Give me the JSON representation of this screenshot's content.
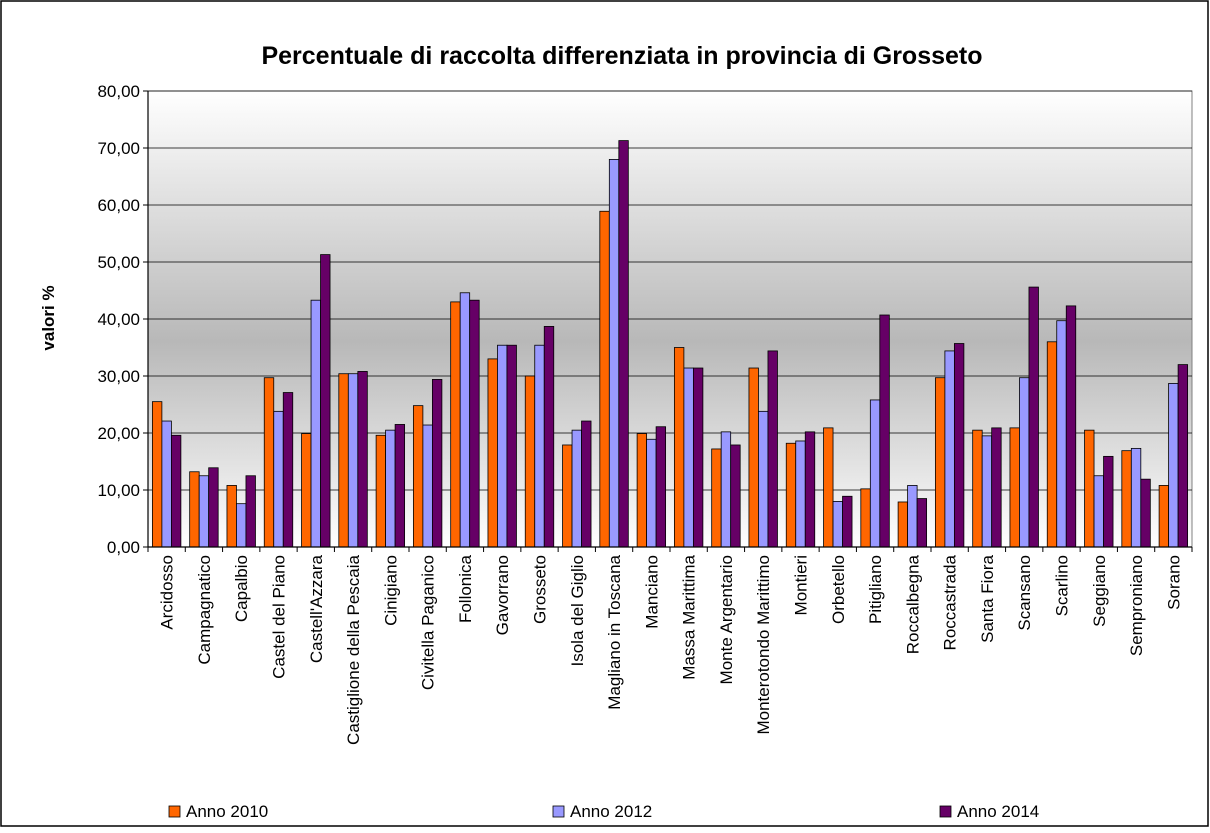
{
  "chart_data": {
    "type": "bar",
    "title": "Percentuale di raccolta differenziata in provincia di Grosseto",
    "xlabel": "",
    "ylabel": "valori %",
    "ylim": [
      0,
      80
    ],
    "yticks": [
      "0,00",
      "10,00",
      "20,00",
      "30,00",
      "40,00",
      "50,00",
      "60,00",
      "70,00",
      "80,00"
    ],
    "grid": true,
    "legend_position": "bottom",
    "categories": [
      "Arcidosso",
      "Campagnatico",
      "Capalbio",
      "Castel del Piano",
      "Castell'Azzara",
      "Castiglione della Pescaia",
      "Cinigiano",
      "Civitella Paganico",
      "Follonica",
      "Gavorrano",
      "Grosseto",
      "Isola del Giglio",
      "Magliano in Toscana",
      "Manciano",
      "Massa Marittima",
      "Monte Argentario",
      "Monterotondo Marittimo",
      "Montieri",
      "Orbetello",
      "Pitigliano",
      "Roccalbegna",
      "Roccastrada",
      "Santa Fiora",
      "Scansano",
      "Scarlino",
      "Seggiano",
      "Semproniano",
      "Sorano"
    ],
    "series": [
      {
        "name": "Anno 2010",
        "color": "#ff6600",
        "values": [
          25.5,
          13.2,
          10.8,
          29.7,
          19.9,
          30.4,
          19.6,
          24.8,
          43.0,
          33.0,
          30.0,
          17.9,
          58.9,
          19.9,
          35.0,
          17.2,
          31.4,
          18.2,
          20.9,
          10.2,
          7.9,
          29.7,
          20.5,
          20.9,
          36.0,
          20.5,
          16.9,
          10.8
        ]
      },
      {
        "name": "Anno 2012",
        "color": "#9999ff",
        "values": [
          22.1,
          12.5,
          7.6,
          23.8,
          43.3,
          30.4,
          20.5,
          21.4,
          44.6,
          35.4,
          35.4,
          20.5,
          68.0,
          18.9,
          31.4,
          20.2,
          23.8,
          18.6,
          8.0,
          25.8,
          10.8,
          34.4,
          19.5,
          29.7,
          39.7,
          12.5,
          17.3,
          28.7
        ]
      },
      {
        "name": "Anno 2014",
        "color": "#660066",
        "values": [
          19.6,
          13.9,
          12.5,
          27.1,
          51.3,
          30.8,
          21.5,
          29.4,
          43.3,
          35.4,
          38.7,
          22.1,
          71.3,
          21.1,
          31.4,
          17.9,
          34.4,
          20.2,
          8.9,
          40.7,
          8.5,
          35.7,
          20.9,
          45.6,
          42.3,
          15.9,
          11.9,
          32.0
        ]
      }
    ]
  }
}
